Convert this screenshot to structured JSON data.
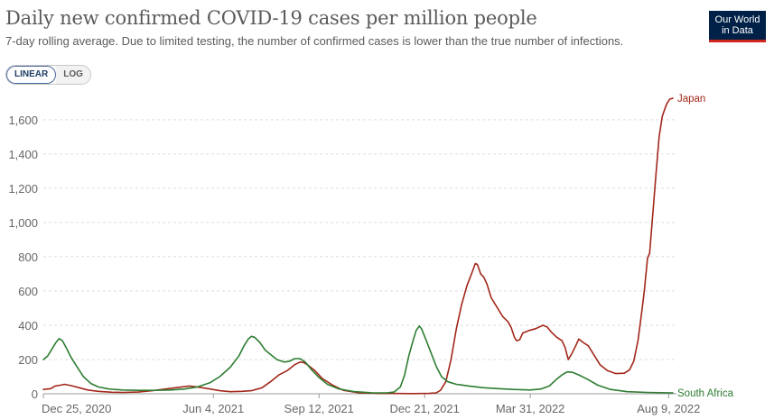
{
  "header": {
    "title": "Daily new confirmed COVID-19 cases per million people",
    "subtitle": "7-day rolling average. Due to limited testing, the number of confirmed cases is lower than the true number of infections."
  },
  "logo": {
    "line1": "Our World",
    "line2": "in Data"
  },
  "scale_toggle": {
    "linear_label": "LINEAR",
    "log_label": "LOG",
    "selected": "LINEAR"
  },
  "colors": {
    "japan": "#a2271a",
    "south_africa": "#2e7d32",
    "grid": "#dddddd",
    "axis": "#666666"
  },
  "chart_data": {
    "type": "line",
    "title": "Daily new confirmed COVID-19 cases per million people",
    "x_start": "2020-12-25",
    "x_end": "2022-08-13",
    "x_ticks": [
      "Dec 25, 2020",
      "Jun 4, 2021",
      "Sep 12, 2021",
      "Dec 21, 2021",
      "Mar 31, 2022",
      "Aug 9, 2022"
    ],
    "y_ticks": [
      0,
      200,
      400,
      600,
      800,
      1000,
      1200,
      1400,
      1600
    ],
    "y_tick_labels": [
      "0",
      "200",
      "400",
      "600",
      "800",
      "1,000",
      "1,200",
      "1,400",
      "1,600"
    ],
    "ylim": [
      0,
      1720
    ],
    "grid": true,
    "series": [
      {
        "name": "Japan",
        "points": [
          [
            "2020-12-25",
            25
          ],
          [
            "2021-01-01",
            30
          ],
          [
            "2021-01-05",
            45
          ],
          [
            "2021-01-10",
            50
          ],
          [
            "2021-01-14",
            55
          ],
          [
            "2021-01-20",
            48
          ],
          [
            "2021-01-28",
            35
          ],
          [
            "2021-02-05",
            22
          ],
          [
            "2021-02-15",
            14
          ],
          [
            "2021-02-28",
            9
          ],
          [
            "2021-03-10",
            8
          ],
          [
            "2021-03-25",
            10
          ],
          [
            "2021-04-10",
            20
          ],
          [
            "2021-04-25",
            32
          ],
          [
            "2021-05-05",
            40
          ],
          [
            "2021-05-12",
            45
          ],
          [
            "2021-05-20",
            40
          ],
          [
            "2021-05-30",
            30
          ],
          [
            "2021-06-10",
            18
          ],
          [
            "2021-06-20",
            12
          ],
          [
            "2021-07-01",
            14
          ],
          [
            "2021-07-10",
            18
          ],
          [
            "2021-07-20",
            35
          ],
          [
            "2021-07-28",
            70
          ],
          [
            "2021-08-05",
            110
          ],
          [
            "2021-08-13",
            135
          ],
          [
            "2021-08-20",
            170
          ],
          [
            "2021-08-25",
            185
          ],
          [
            "2021-08-28",
            183
          ],
          [
            "2021-09-01",
            170
          ],
          [
            "2021-09-08",
            135
          ],
          [
            "2021-09-15",
            90
          ],
          [
            "2021-09-25",
            50
          ],
          [
            "2021-10-05",
            20
          ],
          [
            "2021-10-20",
            5
          ],
          [
            "2021-11-10",
            2
          ],
          [
            "2021-12-10",
            1
          ],
          [
            "2021-12-25",
            2
          ],
          [
            "2022-01-01",
            5
          ],
          [
            "2022-01-05",
            20
          ],
          [
            "2022-01-10",
            70
          ],
          [
            "2022-01-15",
            200
          ],
          [
            "2022-01-20",
            380
          ],
          [
            "2022-01-25",
            520
          ],
          [
            "2022-01-30",
            630
          ],
          [
            "2022-02-04",
            710
          ],
          [
            "2022-02-07",
            760
          ],
          [
            "2022-02-09",
            755
          ],
          [
            "2022-02-12",
            700
          ],
          [
            "2022-02-15",
            680
          ],
          [
            "2022-02-18",
            640
          ],
          [
            "2022-02-22",
            560
          ],
          [
            "2022-02-28",
            500
          ],
          [
            "2022-03-05",
            450
          ],
          [
            "2022-03-10",
            420
          ],
          [
            "2022-03-13",
            385
          ],
          [
            "2022-03-16",
            330
          ],
          [
            "2022-03-18",
            310
          ],
          [
            "2022-03-21",
            315
          ],
          [
            "2022-03-24",
            355
          ],
          [
            "2022-03-30",
            370
          ],
          [
            "2022-04-05",
            380
          ],
          [
            "2022-04-12",
            400
          ],
          [
            "2022-04-16",
            390
          ],
          [
            "2022-04-20",
            360
          ],
          [
            "2022-04-25",
            330
          ],
          [
            "2022-04-30",
            310
          ],
          [
            "2022-05-03",
            270
          ],
          [
            "2022-05-06",
            200
          ],
          [
            "2022-05-09",
            230
          ],
          [
            "2022-05-13",
            280
          ],
          [
            "2022-05-16",
            320
          ],
          [
            "2022-05-20",
            300
          ],
          [
            "2022-05-25",
            280
          ],
          [
            "2022-05-30",
            230
          ],
          [
            "2022-06-05",
            170
          ],
          [
            "2022-06-12",
            135
          ],
          [
            "2022-06-20",
            118
          ],
          [
            "2022-06-28",
            120
          ],
          [
            "2022-07-03",
            140
          ],
          [
            "2022-07-07",
            190
          ],
          [
            "2022-07-11",
            310
          ],
          [
            "2022-07-14",
            450
          ],
          [
            "2022-07-17",
            600
          ],
          [
            "2022-07-20",
            790
          ],
          [
            "2022-07-22",
            820
          ],
          [
            "2022-07-25",
            1050
          ],
          [
            "2022-07-28",
            1280
          ],
          [
            "2022-07-31",
            1500
          ],
          [
            "2022-08-03",
            1620
          ],
          [
            "2022-08-07",
            1690
          ],
          [
            "2022-08-10",
            1720
          ],
          [
            "2022-08-13",
            1725
          ]
        ]
      },
      {
        "name": "South Africa",
        "points": [
          [
            "2020-12-25",
            200
          ],
          [
            "2020-12-29",
            220
          ],
          [
            "2021-01-02",
            260
          ],
          [
            "2021-01-06",
            300
          ],
          [
            "2021-01-09",
            322
          ],
          [
            "2021-01-12",
            310
          ],
          [
            "2021-01-16",
            265
          ],
          [
            "2021-01-20",
            215
          ],
          [
            "2021-01-25",
            165
          ],
          [
            "2021-02-01",
            100
          ],
          [
            "2021-02-08",
            60
          ],
          [
            "2021-02-15",
            40
          ],
          [
            "2021-02-25",
            28
          ],
          [
            "2021-03-10",
            22
          ],
          [
            "2021-03-25",
            20
          ],
          [
            "2021-04-10",
            20
          ],
          [
            "2021-04-25",
            22
          ],
          [
            "2021-05-08",
            28
          ],
          [
            "2021-05-20",
            40
          ],
          [
            "2021-06-01",
            65
          ],
          [
            "2021-06-10",
            100
          ],
          [
            "2021-06-20",
            155
          ],
          [
            "2021-06-28",
            220
          ],
          [
            "2021-07-03",
            280
          ],
          [
            "2021-07-07",
            320
          ],
          [
            "2021-07-10",
            335
          ],
          [
            "2021-07-13",
            330
          ],
          [
            "2021-07-18",
            300
          ],
          [
            "2021-07-23",
            255
          ],
          [
            "2021-07-28",
            230
          ],
          [
            "2021-08-03",
            200
          ],
          [
            "2021-08-10",
            185
          ],
          [
            "2021-08-15",
            190
          ],
          [
            "2021-08-20",
            205
          ],
          [
            "2021-08-25",
            205
          ],
          [
            "2021-08-30",
            185
          ],
          [
            "2021-09-05",
            140
          ],
          [
            "2021-09-12",
            95
          ],
          [
            "2021-09-20",
            55
          ],
          [
            "2021-10-01",
            28
          ],
          [
            "2021-10-15",
            13
          ],
          [
            "2021-11-01",
            6
          ],
          [
            "2021-11-15",
            5
          ],
          [
            "2021-11-22",
            10
          ],
          [
            "2021-11-28",
            40
          ],
          [
            "2021-12-02",
            110
          ],
          [
            "2021-12-06",
            220
          ],
          [
            "2021-12-10",
            310
          ],
          [
            "2021-12-13",
            370
          ],
          [
            "2021-12-16",
            395
          ],
          [
            "2021-12-18",
            380
          ],
          [
            "2021-12-22",
            320
          ],
          [
            "2021-12-27",
            240
          ],
          [
            "2022-01-01",
            160
          ],
          [
            "2022-01-06",
            100
          ],
          [
            "2022-01-12",
            70
          ],
          [
            "2022-01-20",
            55
          ],
          [
            "2022-02-01",
            45
          ],
          [
            "2022-02-15",
            35
          ],
          [
            "2022-03-01",
            30
          ],
          [
            "2022-03-15",
            25
          ],
          [
            "2022-03-31",
            22
          ],
          [
            "2022-04-10",
            28
          ],
          [
            "2022-04-18",
            45
          ],
          [
            "2022-04-24",
            80
          ],
          [
            "2022-04-30",
            110
          ],
          [
            "2022-05-05",
            128
          ],
          [
            "2022-05-10",
            125
          ],
          [
            "2022-05-16",
            110
          ],
          [
            "2022-05-24",
            85
          ],
          [
            "2022-06-03",
            50
          ],
          [
            "2022-06-15",
            25
          ],
          [
            "2022-07-01",
            12
          ],
          [
            "2022-07-20",
            8
          ],
          [
            "2022-08-13",
            5
          ]
        ]
      }
    ]
  }
}
